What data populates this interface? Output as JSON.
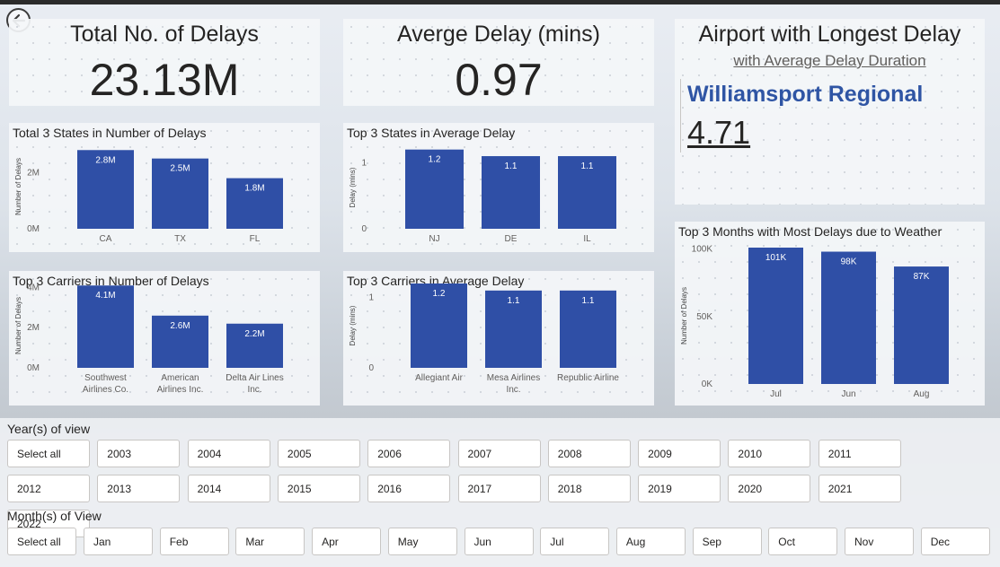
{
  "kpis": {
    "total_delays": {
      "title": "Total No. of Delays",
      "value": "23.13M"
    },
    "avg_delay": {
      "title": "Averge Delay (mins)",
      "value": "0.97"
    }
  },
  "airport": {
    "title": "Airport with Longest Delay",
    "subtitle": "with Average Delay Duration",
    "name": "Williamsport Regional",
    "value": "4.71"
  },
  "colors": {
    "bar": "#2f4fa6",
    "text": "#252423",
    "accent": "#2f55a4"
  },
  "chart_data": [
    {
      "id": "states_count",
      "type": "bar",
      "title": "Total 3 States in Number of Delays",
      "ylabel": "Number of Delays",
      "categories": [
        "CA",
        "TX",
        "FL"
      ],
      "values": [
        2.8,
        2.5,
        1.8
      ],
      "data_labels": [
        "2.8M",
        "2.5M",
        "1.8M"
      ],
      "yticks": [
        {
          "v": 0,
          "label": "0M"
        },
        {
          "v": 2,
          "label": "2M"
        }
      ],
      "ylim": [
        0,
        3
      ]
    },
    {
      "id": "states_avg",
      "type": "bar",
      "title": "Top 3 States in Average Delay",
      "ylabel": "Delay (mins)",
      "categories": [
        "NJ",
        "DE",
        "IL"
      ],
      "values": [
        1.2,
        1.1,
        1.1
      ],
      "data_labels": [
        "1.2",
        "1.1",
        "1.1"
      ],
      "yticks": [
        {
          "v": 0,
          "label": "0"
        },
        {
          "v": 1,
          "label": "1"
        }
      ],
      "ylim": [
        0,
        1.25
      ]
    },
    {
      "id": "carriers_count",
      "type": "bar",
      "title": "Top 3 Carriers in Number of Delays",
      "ylabel": "Number of Delays",
      "categories": [
        [
          "Southwest",
          "Airlines Co."
        ],
        [
          "American",
          "Airlines Inc."
        ],
        [
          "Delta Air Lines",
          "Inc."
        ]
      ],
      "values": [
        4.1,
        2.6,
        2.2
      ],
      "data_labels": [
        "4.1M",
        "2.6M",
        "2.2M"
      ],
      "yticks": [
        {
          "v": 0,
          "label": "0M"
        },
        {
          "v": 2,
          "label": "2M"
        },
        {
          "v": 4,
          "label": "4M"
        }
      ],
      "ylim": [
        0,
        4.2
      ]
    },
    {
      "id": "carriers_avg",
      "type": "bar",
      "title": "Top 3 Carriers in Average Delay",
      "ylabel": "Delay (mins)",
      "categories": [
        [
          "Allegiant Air"
        ],
        [
          "Mesa Airlines",
          "Inc."
        ],
        [
          "Republic Airline"
        ]
      ],
      "values": [
        1.2,
        1.1,
        1.1
      ],
      "data_labels": [
        "1.2",
        "1.1",
        "1.1"
      ],
      "yticks": [
        {
          "v": 0,
          "label": "0"
        },
        {
          "v": 1,
          "label": "1"
        }
      ],
      "ylim": [
        0,
        1.2
      ]
    },
    {
      "id": "weather_months",
      "type": "bar",
      "title": "Top 3 Months with Most Delays due to Weather",
      "ylabel": "Number of Delays",
      "categories": [
        "Jul",
        "Jun",
        "Aug"
      ],
      "values": [
        101,
        98,
        87
      ],
      "data_labels": [
        "101K",
        "98K",
        "87K"
      ],
      "yticks": [
        {
          "v": 0,
          "label": "0K"
        },
        {
          "v": 50,
          "label": "50K"
        },
        {
          "v": 100,
          "label": "100K"
        }
      ],
      "ylim": [
        0,
        101
      ]
    }
  ],
  "years_slicer": {
    "label": "Year(s) of view",
    "options": [
      "Select all",
      "2003",
      "2004",
      "2005",
      "2006",
      "2007",
      "2008",
      "2009",
      "2010",
      "2011",
      "2012",
      "2013",
      "2014",
      "2015",
      "2016",
      "2017",
      "2018",
      "2019",
      "2020",
      "2021",
      "2022"
    ]
  },
  "months_slicer": {
    "label": "Month(s) of View",
    "options": [
      "Select all",
      "Jan",
      "Feb",
      "Mar",
      "Apr",
      "May",
      "Jun",
      "Jul",
      "Aug",
      "Sep",
      "Oct",
      "Nov",
      "Dec"
    ]
  }
}
